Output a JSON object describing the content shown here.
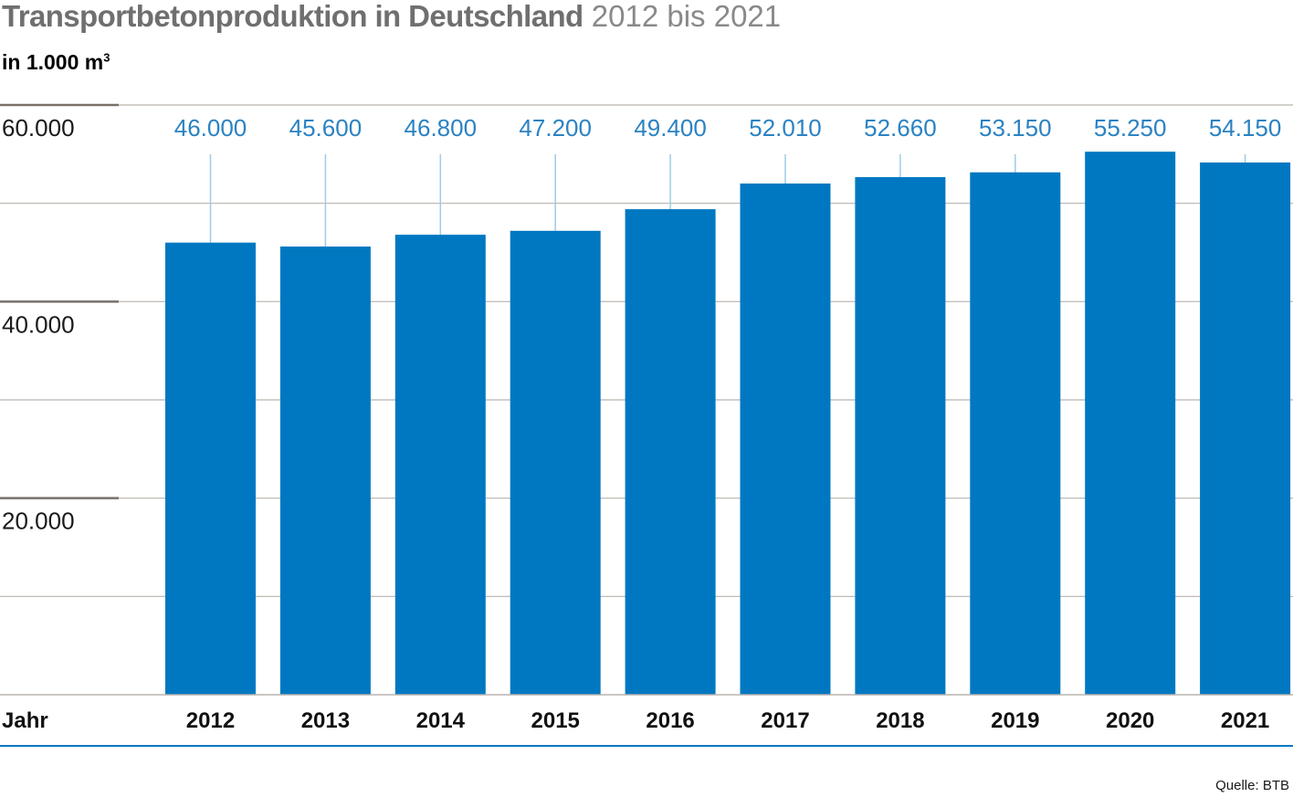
{
  "header": {
    "title_bold": "Transportbetonproduktion in Deutschland",
    "title_light": "2012 bis 2021",
    "unit_text": "in 1.000 m",
    "unit_sup": "3"
  },
  "footer": {
    "source": "Quelle: BTB"
  },
  "colors": {
    "bar": "#0078c1",
    "value_label": "#2b82c2",
    "leader": "#9fcbe6",
    "grid": "#b9b3ae",
    "axis_major": "#7a706a",
    "baseline_blue": "#0078c1"
  },
  "chart_data": {
    "type": "bar",
    "title": "Transportbetonproduktion in Deutschland 2012 bis 2021",
    "ylabel": "in 1.000 m³",
    "xlabel": "Jahr",
    "categories": [
      "2012",
      "2013",
      "2014",
      "2015",
      "2016",
      "2017",
      "2018",
      "2019",
      "2020",
      "2021"
    ],
    "values": [
      46000,
      45600,
      46800,
      47200,
      49400,
      52010,
      52660,
      53150,
      55250,
      54150
    ],
    "value_labels": [
      "46.000",
      "45.600",
      "46.800",
      "47.200",
      "49.400",
      "52.010",
      "52.660",
      "53.150",
      "55.250",
      "54.150"
    ],
    "y_ticks": [
      20000,
      40000,
      60000
    ],
    "y_tick_labels": [
      "20.000",
      "40.000",
      "60.000"
    ],
    "grid_values": [
      10000,
      20000,
      30000,
      40000,
      50000,
      60000
    ],
    "ylim": [
      0,
      60000
    ],
    "grid": true,
    "legend": "none"
  }
}
